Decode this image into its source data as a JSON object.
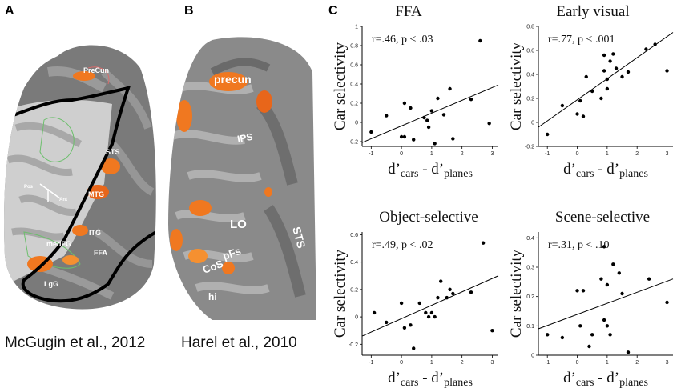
{
  "panels": {
    "a": {
      "letter": "A",
      "credit": "McGugin et al., 2012",
      "labels": [
        "PreCun",
        "STS",
        "MTG",
        "ITG",
        "FFA",
        "medFG",
        "LgG",
        "Pos",
        "Ant"
      ]
    },
    "b": {
      "letter": "B",
      "credit": "Harel et al., 2010",
      "labels": [
        "precun",
        "IPS",
        "LO",
        "STS",
        "pFs",
        "CoS",
        "hi"
      ]
    },
    "c": {
      "letter": "C"
    }
  },
  "chart_data": [
    {
      "type": "scatter",
      "title": "FFA",
      "ylabel": "Car selectivity",
      "xlabel": {
        "main": "d’",
        "sub1": "cars",
        "mid": " - d’",
        "sub2": "planes"
      },
      "annotation": "r=.46, p < .03",
      "xlim": [
        -1.3,
        3.2
      ],
      "ylim": [
        -0.25,
        1.0
      ],
      "xticks": [
        "-1",
        "0",
        "1",
        "2",
        "3"
      ],
      "xtick_values": [
        -1,
        0,
        1,
        2,
        3
      ],
      "yticks": [
        "-0.2",
        "0",
        "0.2",
        "0.4",
        "0.6",
        "0.8",
        "1"
      ],
      "ytick_values": [
        -0.2,
        0,
        0.2,
        0.4,
        0.6,
        0.8,
        1
      ],
      "points": [
        [
          -1.0,
          -0.1
        ],
        [
          -0.5,
          0.07
        ],
        [
          0.0,
          -0.15
        ],
        [
          0.1,
          0.2
        ],
        [
          0.1,
          -0.15
        ],
        [
          0.3,
          0.15
        ],
        [
          0.4,
          -0.18
        ],
        [
          0.75,
          0.05
        ],
        [
          0.85,
          0.02
        ],
        [
          0.9,
          -0.05
        ],
        [
          1.0,
          0.12
        ],
        [
          1.1,
          -0.22
        ],
        [
          1.2,
          0.25
        ],
        [
          1.4,
          0.08
        ],
        [
          1.6,
          0.35
        ],
        [
          1.7,
          -0.17
        ],
        [
          2.3,
          0.24
        ],
        [
          2.6,
          0.85
        ],
        [
          2.9,
          -0.01
        ]
      ],
      "fit": [
        [
          -1.3,
          -0.21
        ],
        [
          3.2,
          0.39
        ]
      ]
    },
    {
      "type": "scatter",
      "title": "Early visual",
      "ylabel": "Car selectivity",
      "xlabel": {
        "main": "d’",
        "sub1": "cars",
        "mid": " - d’",
        "sub2": "planes"
      },
      "annotation": "r=.77, p < .001",
      "xlim": [
        -1.3,
        3.2
      ],
      "ylim": [
        -0.2,
        0.8
      ],
      "xticks": [
        "-1",
        "0",
        "1",
        "2",
        "3"
      ],
      "xtick_values": [
        -1,
        0,
        1,
        2,
        3
      ],
      "yticks": [
        "-0.2",
        "0",
        "0.2",
        "0.4",
        "0.6",
        "0.8"
      ],
      "ytick_values": [
        -0.2,
        0,
        0.2,
        0.4,
        0.6,
        0.8
      ],
      "points": [
        [
          -1.0,
          -0.1
        ],
        [
          -0.5,
          0.14
        ],
        [
          0.0,
          0.07
        ],
        [
          0.1,
          0.18
        ],
        [
          0.2,
          0.05
        ],
        [
          0.3,
          0.38
        ],
        [
          0.5,
          0.26
        ],
        [
          0.8,
          0.2
        ],
        [
          0.9,
          0.56
        ],
        [
          0.9,
          0.43
        ],
        [
          1.0,
          0.28
        ],
        [
          1.0,
          0.36
        ],
        [
          1.1,
          0.51
        ],
        [
          1.2,
          0.57
        ],
        [
          1.3,
          0.45
        ],
        [
          1.5,
          0.38
        ],
        [
          1.7,
          0.42
        ],
        [
          2.3,
          0.61
        ],
        [
          2.6,
          0.65
        ],
        [
          3.0,
          0.43
        ]
      ],
      "fit": [
        [
          -1.3,
          -0.04
        ],
        [
          3.2,
          0.75
        ]
      ]
    },
    {
      "type": "scatter",
      "title": "Object-selective",
      "ylabel": "Car selectivity",
      "xlabel": {
        "main": "d’",
        "sub1": "cars",
        "mid": " - d’",
        "sub2": "planes"
      },
      "annotation": "r=.49, p < .02",
      "xlim": [
        -1.3,
        3.2
      ],
      "ylim": [
        -0.28,
        0.62
      ],
      "xticks": [
        "-1",
        "0",
        "1",
        "2",
        "3"
      ],
      "xtick_values": [
        -1,
        0,
        1,
        2,
        3
      ],
      "yticks": [
        "-0.2",
        "0",
        "0.2",
        "0.4",
        "0.6"
      ],
      "ytick_values": [
        -0.2,
        0,
        0.2,
        0.4,
        0.6
      ],
      "points": [
        [
          -0.9,
          0.03
        ],
        [
          -0.5,
          -0.04
        ],
        [
          0.0,
          0.1
        ],
        [
          0.1,
          -0.08
        ],
        [
          0.3,
          -0.06
        ],
        [
          0.4,
          -0.23
        ],
        [
          0.6,
          0.1
        ],
        [
          0.8,
          0.03
        ],
        [
          0.9,
          0.0
        ],
        [
          1.0,
          0.03
        ],
        [
          1.1,
          0.0
        ],
        [
          1.2,
          0.14
        ],
        [
          1.3,
          0.26
        ],
        [
          1.5,
          0.14
        ],
        [
          1.6,
          0.2
        ],
        [
          1.7,
          0.17
        ],
        [
          2.3,
          0.18
        ],
        [
          2.7,
          0.54
        ],
        [
          3.0,
          -0.1
        ]
      ],
      "fit": [
        [
          -1.3,
          -0.14
        ],
        [
          3.2,
          0.3
        ]
      ]
    },
    {
      "type": "scatter",
      "title": "Scene-selective",
      "ylabel": "Car selectivity",
      "xlabel": {
        "main": "d’",
        "sub1": "cars",
        "mid": " - d’",
        "sub2": "planes"
      },
      "annotation": "r=.31, p < .10",
      "xlim": [
        -1.3,
        3.2
      ],
      "ylim": [
        0.0,
        0.42
      ],
      "xticks": [
        "-1",
        "0",
        "1",
        "2",
        "3"
      ],
      "xtick_values": [
        -1,
        0,
        1,
        2,
        3
      ],
      "yticks": [
        "0",
        "0.1",
        "0.2",
        "0.3",
        "0.4"
      ],
      "ytick_values": [
        0,
        0.1,
        0.2,
        0.3,
        0.4
      ],
      "points": [
        [
          -1.0,
          0.07
        ],
        [
          -0.5,
          0.06
        ],
        [
          0.0,
          0.22
        ],
        [
          0.1,
          0.1
        ],
        [
          0.2,
          0.22
        ],
        [
          0.4,
          0.03
        ],
        [
          0.5,
          0.07
        ],
        [
          0.8,
          0.26
        ],
        [
          0.9,
          0.37
        ],
        [
          0.9,
          0.12
        ],
        [
          1.0,
          0.24
        ],
        [
          1.0,
          0.1
        ],
        [
          1.1,
          0.07
        ],
        [
          1.2,
          0.31
        ],
        [
          1.4,
          0.28
        ],
        [
          1.5,
          0.21
        ],
        [
          1.7,
          0.01
        ],
        [
          2.4,
          0.26
        ],
        [
          3.0,
          0.18
        ]
      ],
      "fit": [
        [
          -1.3,
          0.09
        ],
        [
          3.2,
          0.26
        ]
      ]
    }
  ]
}
